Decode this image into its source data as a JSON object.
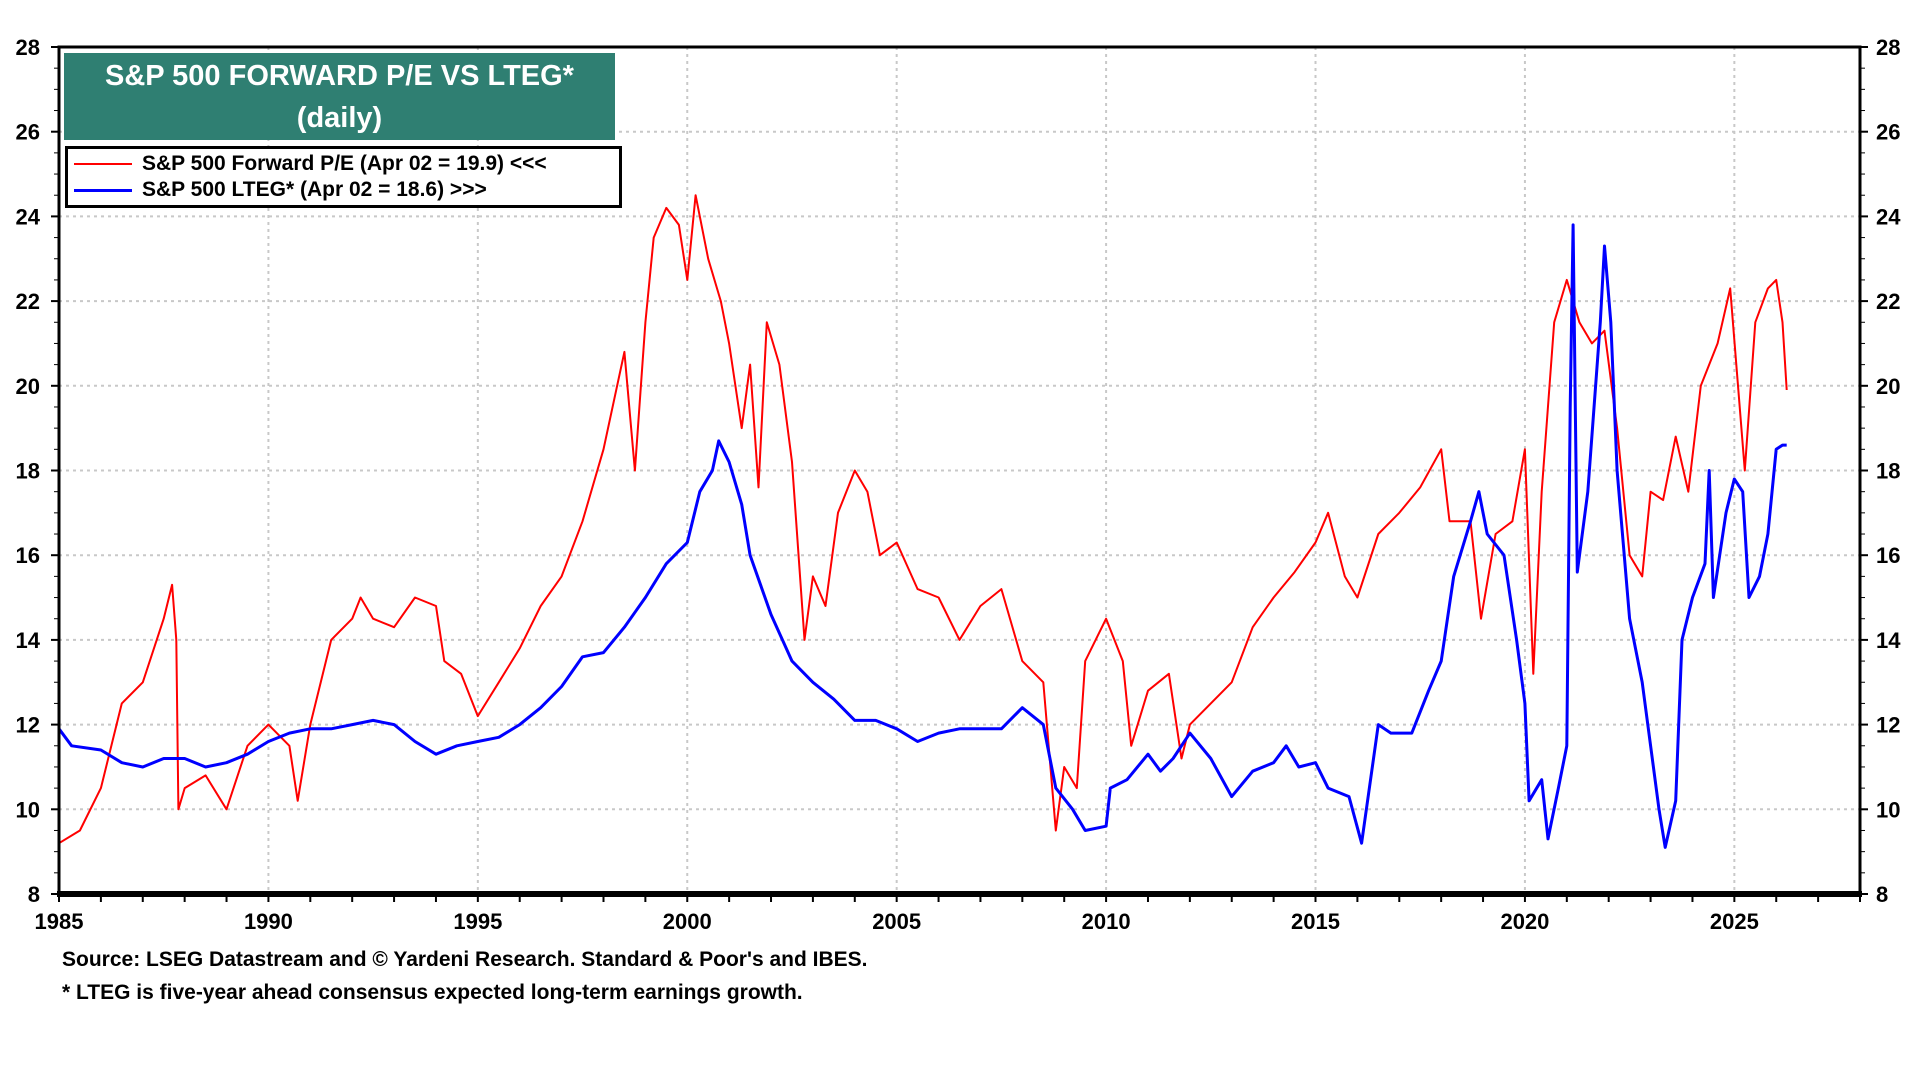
{
  "title": {
    "line1": "S&P 500 FORWARD P/E VS LTEG*",
    "line2": "(daily)"
  },
  "legend": [
    {
      "label": "S&P 500 Forward P/E (Apr 02 = 19.9) <<<",
      "color": "#ff0000"
    },
    {
      "label": "S&P 500 LTEG* (Apr 02 = 18.6) >>>",
      "color": "#0000ff"
    }
  ],
  "footnotes": {
    "source": "Source: LSEG Datastream and © Yardeni Research.  Standard & Poor's and IBES.",
    "note": "* LTEG is five-year ahead consensus expected long-term earnings growth."
  },
  "colors": {
    "title_bg": "#2f7f72",
    "pe": "#ff0000",
    "lteg": "#0000ff",
    "grid": "#c8c8c8"
  },
  "chart_data": {
    "type": "line",
    "title": "S&P 500 FORWARD P/E VS LTEG* (daily)",
    "xlim": [
      1985,
      2028
    ],
    "ylim": [
      8,
      28
    ],
    "ylim_right": [
      8,
      28
    ],
    "x_ticks": [
      "1985",
      "1990",
      "1995",
      "2000",
      "2005",
      "2010",
      "2015",
      "2020",
      "2025"
    ],
    "y_ticks": [
      "8",
      "10",
      "12",
      "14",
      "16",
      "18",
      "20",
      "22",
      "24",
      "26",
      "28"
    ],
    "grid": true,
    "legend_position": "top-left",
    "series": [
      {
        "name": "S&P 500 Forward P/E (Apr 02 = 19.9) <<<",
        "axis": "left",
        "color": "#ff0000",
        "x": [
          1985.0,
          1985.5,
          1986.0,
          1986.5,
          1987.0,
          1987.5,
          1987.7,
          1987.8,
          1987.85,
          1988.0,
          1988.5,
          1989.0,
          1989.5,
          1990.0,
          1990.5,
          1990.7,
          1991.0,
          1991.5,
          1992.0,
          1992.2,
          1992.5,
          1993.0,
          1993.5,
          1994.0,
          1994.2,
          1994.6,
          1995.0,
          1995.5,
          1996.0,
          1996.5,
          1997.0,
          1997.5,
          1998.0,
          1998.5,
          1998.75,
          1999.0,
          1999.2,
          1999.5,
          1999.8,
          2000.0,
          2000.2,
          2000.5,
          2000.8,
          2001.0,
          2001.3,
          2001.5,
          2001.7,
          2001.9,
          2002.2,
          2002.5,
          2002.8,
          2003.0,
          2003.3,
          2003.6,
          2004.0,
          2004.3,
          2004.6,
          2005.0,
          2005.5,
          2006.0,
          2006.5,
          2007.0,
          2007.5,
          2008.0,
          2008.5,
          2008.8,
          2009.0,
          2009.3,
          2009.5,
          2010.0,
          2010.4,
          2010.6,
          2011.0,
          2011.5,
          2011.8,
          2012.0,
          2012.5,
          2013.0,
          2013.5,
          2014.0,
          2014.5,
          2015.0,
          2015.3,
          2015.7,
          2016.0,
          2016.5,
          2017.0,
          2017.5,
          2018.0,
          2018.2,
          2018.7,
          2018.95,
          2019.3,
          2019.7,
          2020.0,
          2020.2,
          2020.4,
          2020.7,
          2021.0,
          2021.3,
          2021.6,
          2021.9,
          2022.2,
          2022.5,
          2022.8,
          2023.0,
          2023.3,
          2023.6,
          2023.9,
          2024.2,
          2024.6,
          2024.9,
          2025.25,
          2025.5,
          2025.8,
          2026.0,
          2026.15,
          2026.25
        ],
        "y": [
          9.2,
          9.5,
          10.5,
          12.5,
          13.0,
          14.5,
          15.3,
          14.0,
          10.0,
          10.5,
          10.8,
          10.0,
          11.5,
          12.0,
          11.5,
          10.2,
          12.0,
          14.0,
          14.5,
          15.0,
          14.5,
          14.3,
          15.0,
          14.8,
          13.5,
          13.2,
          12.2,
          13.0,
          13.8,
          14.8,
          15.5,
          16.8,
          18.5,
          20.8,
          18.0,
          21.5,
          23.5,
          24.2,
          23.8,
          22.5,
          24.5,
          23.0,
          22.0,
          21.0,
          19.0,
          20.5,
          17.6,
          21.5,
          20.5,
          18.2,
          14.0,
          15.5,
          14.8,
          17.0,
          18.0,
          17.5,
          16.0,
          16.3,
          15.2,
          15.0,
          14.0,
          14.8,
          15.2,
          13.5,
          13.0,
          9.5,
          11.0,
          10.5,
          13.5,
          14.5,
          13.5,
          11.5,
          12.8,
          13.2,
          11.2,
          12.0,
          12.5,
          13.0,
          14.3,
          15.0,
          15.6,
          16.3,
          17.0,
          15.5,
          15.0,
          16.5,
          17.0,
          17.6,
          18.5,
          16.8,
          16.8,
          14.5,
          16.5,
          16.8,
          18.5,
          13.2,
          17.5,
          21.5,
          22.5,
          21.5,
          21.0,
          21.3,
          19.0,
          16.0,
          15.5,
          17.5,
          17.3,
          18.8,
          17.5,
          20.0,
          21.0,
          22.3,
          18.0,
          21.5,
          22.3,
          22.5,
          21.5,
          19.9
        ]
      },
      {
        "name": "S&P 500 LTEG* (Apr 02 = 18.6) >>>",
        "axis": "right",
        "color": "#0000ff",
        "x": [
          1985.0,
          1985.3,
          1986.0,
          1986.5,
          1987.0,
          1987.5,
          1988.0,
          1988.5,
          1989.0,
          1989.5,
          1990.0,
          1990.5,
          1991.0,
          1991.5,
          1992.0,
          1992.5,
          1993.0,
          1993.5,
          1994.0,
          1994.5,
          1995.0,
          1995.5,
          1996.0,
          1996.5,
          1997.0,
          1997.5,
          1998.0,
          1998.5,
          1999.0,
          1999.5,
          2000.0,
          2000.3,
          2000.6,
          2000.75,
          2001.0,
          2001.3,
          2001.5,
          2002.0,
          2002.5,
          2003.0,
          2003.5,
          2004.0,
          2004.5,
          2005.0,
          2005.5,
          2006.0,
          2006.5,
          2007.0,
          2007.5,
          2008.0,
          2008.5,
          2008.8,
          2009.2,
          2009.5,
          2010.0,
          2010.1,
          2010.5,
          2011.0,
          2011.3,
          2011.6,
          2012.0,
          2012.5,
          2013.0,
          2013.5,
          2014.0,
          2014.3,
          2014.6,
          2015.0,
          2015.3,
          2015.8,
          2016.1,
          2016.5,
          2016.8,
          2017.3,
          2017.7,
          2018.0,
          2018.3,
          2018.7,
          2018.9,
          2019.1,
          2019.5,
          2019.8,
          2020.0,
          2020.1,
          2020.4,
          2020.55,
          2020.8,
          2021.0,
          2021.08,
          2021.15,
          2021.25,
          2021.5,
          2021.8,
          2021.9,
          2022.05,
          2022.2,
          2022.5,
          2022.8,
          2023.0,
          2023.2,
          2023.35,
          2023.6,
          2023.75,
          2024.0,
          2024.3,
          2024.4,
          2024.5,
          2024.8,
          2025.0,
          2025.2,
          2025.35,
          2025.6,
          2025.8,
          2026.0,
          2026.15,
          2026.25
        ],
        "y": [
          11.9,
          11.5,
          11.4,
          11.1,
          11.0,
          11.2,
          11.2,
          11.0,
          11.1,
          11.3,
          11.6,
          11.8,
          11.9,
          11.9,
          12.0,
          12.1,
          12.0,
          11.6,
          11.3,
          11.5,
          11.6,
          11.7,
          12.0,
          12.4,
          12.9,
          13.6,
          13.7,
          14.3,
          15.0,
          15.8,
          16.3,
          17.5,
          18.0,
          18.7,
          18.2,
          17.2,
          16.0,
          14.6,
          13.5,
          13.0,
          12.6,
          12.1,
          12.1,
          11.9,
          11.6,
          11.8,
          11.9,
          11.9,
          11.9,
          12.4,
          12.0,
          10.5,
          10.0,
          9.5,
          9.6,
          10.5,
          10.7,
          11.3,
          10.9,
          11.2,
          11.8,
          11.2,
          10.3,
          10.9,
          11.1,
          11.5,
          11.0,
          11.1,
          10.5,
          10.3,
          9.2,
          12.0,
          11.8,
          11.8,
          12.8,
          13.5,
          15.5,
          16.8,
          17.5,
          16.5,
          16.0,
          14.0,
          12.5,
          10.2,
          10.7,
          9.3,
          10.5,
          11.5,
          19.5,
          23.8,
          15.6,
          17.5,
          21.5,
          23.3,
          21.5,
          18.0,
          14.5,
          13.0,
          11.5,
          10.0,
          9.1,
          10.2,
          14.0,
          15.0,
          15.8,
          18.0,
          15.0,
          17.0,
          17.8,
          17.5,
          15.0,
          15.5,
          16.5,
          18.5,
          18.6,
          18.6
        ]
      }
    ]
  }
}
